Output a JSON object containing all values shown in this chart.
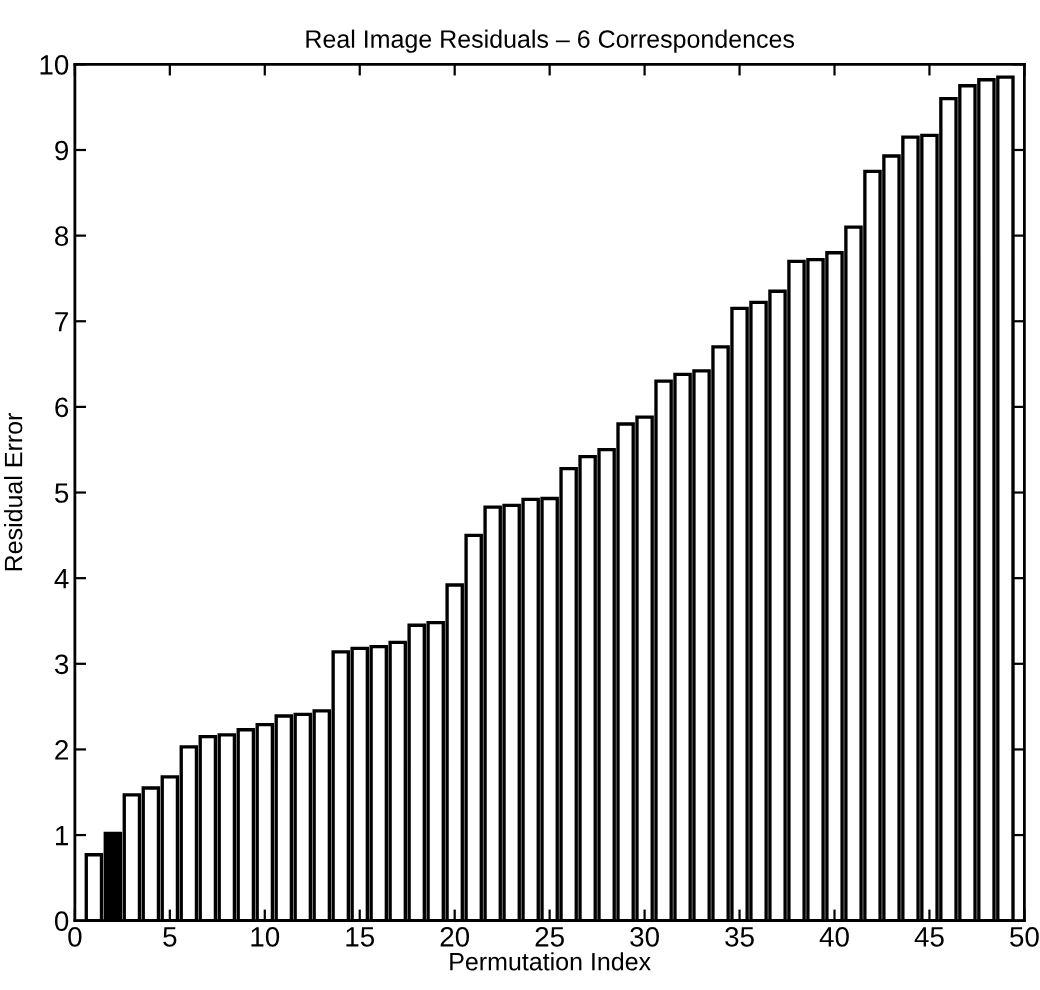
{
  "chart_data": {
    "type": "bar",
    "title": "Real Image Residuals – 6 Correspondences",
    "xlabel": "Permutation Index",
    "ylabel": "Residual Error",
    "x": [
      1,
      2,
      3,
      4,
      5,
      6,
      7,
      8,
      9,
      10,
      11,
      12,
      13,
      14,
      15,
      16,
      17,
      18,
      19,
      20,
      21,
      22,
      23,
      24,
      25,
      26,
      27,
      28,
      29,
      30,
      31,
      32,
      33,
      34,
      35,
      36,
      37,
      38,
      39,
      40,
      41,
      42,
      43,
      44,
      45,
      46,
      47,
      48,
      49
    ],
    "values": [
      0.77,
      1.02,
      1.47,
      1.55,
      1.68,
      2.03,
      2.15,
      2.17,
      2.23,
      2.29,
      2.39,
      2.41,
      2.45,
      3.14,
      3.18,
      3.2,
      3.25,
      3.45,
      3.48,
      3.92,
      4.5,
      4.83,
      4.85,
      4.92,
      4.93,
      5.28,
      5.42,
      5.5,
      5.8,
      5.88,
      6.3,
      6.38,
      6.42,
      6.7,
      7.15,
      7.22,
      7.35,
      7.7,
      7.72,
      7.8,
      8.1,
      8.75,
      8.93,
      9.15,
      9.17,
      9.6,
      9.75,
      9.82,
      9.85
    ],
    "colors": [
      "#ffffff",
      "#000000",
      "#ffffff",
      "#ffffff",
      "#ffffff",
      "#ffffff",
      "#ffffff",
      "#ffffff",
      "#ffffff",
      "#ffffff",
      "#ffffff",
      "#ffffff",
      "#ffffff",
      "#ffffff",
      "#ffffff",
      "#ffffff",
      "#ffffff",
      "#ffffff",
      "#ffffff",
      "#ffffff",
      "#ffffff",
      "#ffffff",
      "#ffffff",
      "#ffffff",
      "#ffffff",
      "#ffffff",
      "#ffffff",
      "#ffffff",
      "#ffffff",
      "#ffffff",
      "#ffffff",
      "#ffffff",
      "#ffffff",
      "#ffffff",
      "#ffffff",
      "#ffffff",
      "#ffffff",
      "#ffffff",
      "#ffffff",
      "#ffffff",
      "#ffffff",
      "#ffffff",
      "#ffffff",
      "#ffffff",
      "#ffffff",
      "#ffffff",
      "#ffffff",
      "#ffffff",
      "#ffffff"
    ],
    "xlim": [
      0,
      50
    ],
    "xticks": [
      0,
      5,
      10,
      15,
      20,
      25,
      30,
      35,
      40,
      45,
      50
    ],
    "ylim": [
      0,
      10
    ],
    "yticks": [
      0,
      1,
      2,
      3,
      4,
      5,
      6,
      7,
      8,
      9,
      10
    ],
    "grid": false
  }
}
